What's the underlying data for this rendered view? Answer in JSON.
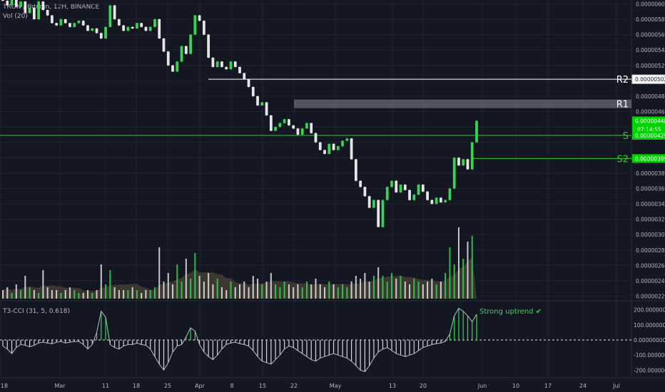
{
  "header": {
    "symbol_line": "TRON / Bitcoin, 12H, BINANCE",
    "volume_label": "Vol (20)",
    "indicator_label": "T3-CCI (31, 5, 0.618)"
  },
  "colors": {
    "background": "#131722",
    "grid": "#1e222d",
    "up_candle": "#39d353",
    "down_candle": "#e6e6e6",
    "level_green": "#31c631",
    "level_white": "#ffffff",
    "r1_zone": "#5d606b",
    "price_badge": "#00d400",
    "axis_text": "#b2b5be"
  },
  "chart_data": {
    "type": "candlestick",
    "title": "TRON / Bitcoin, 12H, BINANCE",
    "price_axis": {
      "ticks": [
        "0.00000600",
        "0.00000580",
        "0.00000560",
        "0.00000540",
        "0.00000520",
        "0.00000502",
        "0.00000480",
        "0.00000460",
        "0.00000448",
        "0.00000429",
        "0.00000399",
        "0.00000380",
        "0.00000360",
        "0.00000340",
        "0.00000320",
        "0.00000300",
        "0.00000280",
        "0.00000260",
        "0.00000240",
        "0.00000220"
      ],
      "range": [
        2.15e-06,
        6.05e-06
      ]
    },
    "time_axis": {
      "ticks": [
        "18",
        "Mar",
        "11",
        "18",
        "25",
        "Apr",
        "8",
        "15",
        "22",
        "May",
        "13",
        "20",
        "Jun",
        "10",
        "17",
        "24",
        "Jul"
      ]
    },
    "levels": [
      {
        "name": "R2",
        "value": 5.02e-06,
        "label": "0.00000502",
        "style": "white-line",
        "start": "Apr"
      },
      {
        "name": "R1",
        "value": 4.7e-06,
        "label": "",
        "style": "grey-zone",
        "start": "22"
      },
      {
        "name": "S",
        "value": 4.29e-06,
        "label": "0.00000429",
        "style": "green-line",
        "start": "18"
      },
      {
        "name": "S2",
        "value": 3.99e-06,
        "label": "0.00000399",
        "style": "green-line",
        "start": "Jun"
      }
    ],
    "current_price": {
      "value": "0.00000448",
      "countdown": "07:14:55"
    },
    "candles": [
      [
        6.14e-06,
        6.04e-06
      ],
      [
        6.04e-06,
        5.98e-06
      ],
      [
        5.98e-06,
        6.1e-06
      ],
      [
        6.1e-06,
        5.96e-06
      ],
      [
        5.96e-06,
        6.03e-06
      ],
      [
        6.03e-06,
        5.88e-06
      ],
      [
        5.88e-06,
        5.95e-06
      ],
      [
        5.95e-06,
        5.8e-06
      ],
      [
        5.8e-06,
        6.03e-06
      ],
      [
        6.03e-06,
        5.92e-06
      ],
      [
        5.92e-06,
        5.85e-06
      ],
      [
        5.85e-06,
        5.75e-06
      ],
      [
        5.75e-06,
        5.72e-06
      ],
      [
        5.72e-06,
        5.8e-06
      ],
      [
        5.8e-06,
        5.75e-06
      ],
      [
        5.75e-06,
        5.7e-06
      ],
      [
        5.7e-06,
        5.75e-06
      ],
      [
        5.75e-06,
        5.78e-06
      ],
      [
        5.78e-06,
        5.72e-06
      ],
      [
        5.72e-06,
        5.65e-06
      ],
      [
        5.65e-06,
        5.68e-06
      ],
      [
        5.68e-06,
        5.62e-06
      ],
      [
        5.62e-06,
        5.55e-06
      ],
      [
        5.55e-06,
        5.7e-06
      ],
      [
        5.7e-06,
        5.98e-06
      ],
      [
        5.98e-06,
        5.8e-06
      ],
      [
        5.8e-06,
        5.72e-06
      ],
      [
        5.72e-06,
        5.65e-06
      ],
      [
        5.65e-06,
        5.7e-06
      ],
      [
        5.7e-06,
        5.68e-06
      ],
      [
        5.68e-06,
        5.75e-06
      ],
      [
        5.75e-06,
        5.7e-06
      ],
      [
        5.7e-06,
        5.65e-06
      ],
      [
        5.65e-06,
        5.7e-06
      ],
      [
        5.7e-06,
        5.8e-06
      ],
      [
        5.8e-06,
        5.55e-06
      ],
      [
        5.55e-06,
        5.38e-06
      ],
      [
        5.38e-06,
        5.2e-06
      ],
      [
        5.2e-06,
        5.12e-06
      ],
      [
        5.12e-06,
        5.25e-06
      ],
      [
        5.25e-06,
        5.45e-06
      ],
      [
        5.45e-06,
        5.35e-06
      ],
      [
        5.35e-06,
        5.6e-06
      ],
      [
        5.6e-06,
        5.85e-06
      ],
      [
        5.85e-06,
        5.78e-06
      ],
      [
        5.78e-06,
        5.6e-06
      ],
      [
        5.6e-06,
        5.3e-06
      ],
      [
        5.3e-06,
        5.18e-06
      ],
      [
        5.18e-06,
        5.25e-06
      ],
      [
        5.25e-06,
        5.18e-06
      ],
      [
        5.18e-06,
        5.15e-06
      ],
      [
        5.15e-06,
        5.25e-06
      ],
      [
        5.25e-06,
        5.18e-06
      ],
      [
        5.18e-06,
        5.1e-06
      ],
      [
        5.1e-06,
        5.02e-06
      ],
      [
        5.02e-06,
        4.92e-06
      ],
      [
        4.92e-06,
        4.8e-06
      ],
      [
        4.8e-06,
        4.68e-06
      ],
      [
        4.68e-06,
        4.72e-06
      ],
      [
        4.72e-06,
        4.55e-06
      ],
      [
        4.55e-06,
        4.35e-06
      ],
      [
        4.35e-06,
        4.4e-06
      ],
      [
        4.4e-06,
        4.45e-06
      ],
      [
        4.45e-06,
        4.5e-06
      ],
      [
        4.5e-06,
        4.42e-06
      ],
      [
        4.42e-06,
        4.38e-06
      ],
      [
        4.38e-06,
        4.3e-06
      ],
      [
        4.3e-06,
        4.38e-06
      ],
      [
        4.38e-06,
        4.45e-06
      ],
      [
        4.45e-06,
        4.32e-06
      ],
      [
        4.32e-06,
        4.2e-06
      ],
      [
        4.2e-06,
        4.1e-06
      ],
      [
        4.1e-06,
        4.05e-06
      ],
      [
        4.05e-06,
        4.18e-06
      ],
      [
        4.18e-06,
        4.1e-06
      ],
      [
        4.1e-06,
        4.15e-06
      ],
      [
        4.15e-06,
        4.22e-06
      ],
      [
        4.22e-06,
        4.25e-06
      ],
      [
        4.25e-06,
        3.98e-06
      ],
      [
        3.98e-06,
        3.7e-06
      ],
      [
        3.7e-06,
        3.62e-06
      ],
      [
        3.62e-06,
        3.5e-06
      ],
      [
        3.5e-06,
        3.35e-06
      ],
      [
        3.35e-06,
        3.45e-06
      ],
      [
        3.45e-06,
        3.1e-06
      ],
      [
        3.1e-06,
        3.45e-06
      ],
      [
        3.45e-06,
        3.62e-06
      ],
      [
        3.62e-06,
        3.7e-06
      ],
      [
        3.7e-06,
        3.55e-06
      ],
      [
        3.55e-06,
        3.65e-06
      ],
      [
        3.65e-06,
        3.58e-06
      ],
      [
        3.58e-06,
        3.45e-06
      ],
      [
        3.45e-06,
        3.52e-06
      ],
      [
        3.52e-06,
        3.65e-06
      ],
      [
        3.65e-06,
        3.56e-06
      ],
      [
        3.56e-06,
        3.45e-06
      ],
      [
        3.45e-06,
        3.4e-06
      ],
      [
        3.4e-06,
        3.48e-06
      ],
      [
        3.48e-06,
        3.42e-06
      ],
      [
        3.42e-06,
        3.45e-06
      ],
      [
        3.45e-06,
        3.6e-06
      ],
      [
        3.6e-06,
        4e-06
      ],
      [
        4e-06,
        3.9e-06
      ],
      [
        3.9e-06,
        3.98e-06
      ],
      [
        3.98e-06,
        3.85e-06
      ],
      [
        3.85e-06,
        4.2e-06
      ],
      [
        4.2e-06,
        4.48e-06
      ]
    ],
    "volume": [
      3,
      4,
      2,
      5,
      3,
      8,
      4,
      3,
      2,
      10,
      4,
      3,
      3,
      2,
      3,
      4,
      3,
      2,
      2,
      3,
      2,
      3,
      12,
      5,
      10,
      4,
      3,
      3,
      3,
      4,
      3,
      2,
      3,
      3,
      4,
      18,
      6,
      9,
      5,
      12,
      6,
      14,
      7,
      16,
      8,
      6,
      9,
      5,
      7,
      4,
      3,
      6,
      4,
      5,
      6,
      4,
      8,
      7,
      5,
      6,
      9,
      5,
      4,
      6,
      5,
      4,
      5,
      4,
      6,
      5,
      7,
      5,
      4,
      6,
      5,
      4,
      5,
      4,
      6,
      8,
      7,
      9,
      6,
      8,
      11,
      8,
      6,
      9,
      7,
      8,
      6,
      5,
      7,
      6,
      5,
      6,
      7,
      5,
      6,
      9,
      18,
      12,
      25,
      14,
      20,
      22
    ],
    "cci": [
      -40,
      -60,
      -90,
      -50,
      -30,
      -35,
      -45,
      -35,
      -20,
      -15,
      -20,
      -25,
      -15,
      -10,
      -20,
      -15,
      -10,
      -10,
      -30,
      -60,
      -30,
      50,
      190,
      150,
      -30,
      -50,
      -60,
      -40,
      -30,
      -30,
      -20,
      -30,
      -35,
      -60,
      -110,
      -160,
      -200,
      -150,
      -80,
      -40,
      -30,
      20,
      80,
      60,
      -30,
      -80,
      -110,
      -130,
      -100,
      -60,
      -30,
      -20,
      -15,
      -25,
      -30,
      -40,
      -70,
      -110,
      -140,
      -150,
      -160,
      -130,
      -100,
      -60,
      -40,
      -50,
      -70,
      -90,
      -110,
      -130,
      -140,
      -120,
      -110,
      -100,
      -90,
      -100,
      -110,
      -120,
      -140,
      -170,
      -200,
      -210,
      -170,
      -120,
      -80,
      -60,
      -50,
      -70,
      -90,
      -100,
      -110,
      -100,
      -90,
      -70,
      -50,
      -40,
      -30,
      -25,
      -20,
      -10,
      40,
      160,
      210,
      190,
      160,
      120,
      170
    ],
    "cci_axis": {
      "ticks": [
        "200.00000000",
        "100.00000000",
        "0.00000000",
        "-100.00000000",
        "-200.00000000"
      ],
      "range": [
        -250,
        250
      ]
    },
    "annotation": {
      "text": "Strong uptrend",
      "mark": "✔"
    }
  }
}
